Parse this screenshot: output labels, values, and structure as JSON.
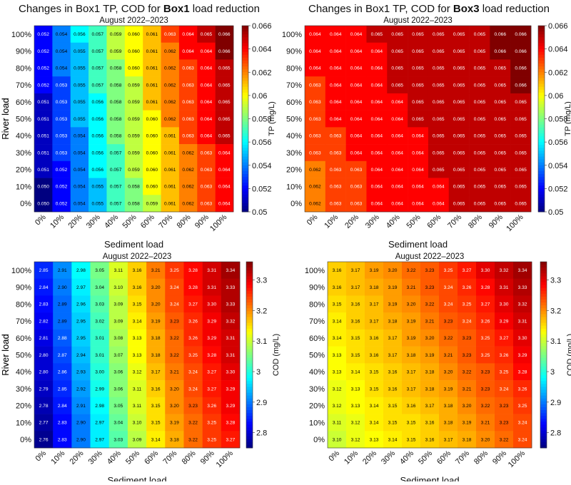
{
  "charts": [
    {
      "id": "p1",
      "title_parts": [
        "Changes in Box1 TP, COD for ",
        "Box1",
        " load reduction"
      ],
      "subtitle": "August 2022–2023",
      "xlabel": "Sediment load",
      "ylabel": "River load",
      "cbar_label": "TP (mg/L)",
      "vmin": 0.05,
      "vmax": 0.066,
      "cbar_ticks": [
        "0.066",
        "0.064",
        "0.062",
        "0.06",
        "0.058",
        "0.056",
        "0.054",
        "0.052",
        "0.05"
      ],
      "x_ticks": [
        "0%",
        "10%",
        "20%",
        "30%",
        "40%",
        "50%",
        "60%",
        "70%",
        "80%",
        "90%",
        "100%"
      ],
      "y_ticks": [
        "100%",
        "90%",
        "80%",
        "70%",
        "60%",
        "50%",
        "40%",
        "30%",
        "20%",
        "10%",
        "0%"
      ],
      "rows": [
        [
          "0.052",
          "0.054",
          "0.056",
          "0.057",
          "0.059",
          "0.060",
          "0.061",
          "0.063",
          "0.064",
          "0.065",
          "0.066"
        ],
        [
          "0.052",
          "0.054",
          "0.055",
          "0.057",
          "0.059",
          "0.060",
          "0.061",
          "0.062",
          "0.064",
          "0.064",
          "0.066"
        ],
        [
          "0.052",
          "0.054",
          "0.055",
          "0.057",
          "0.058",
          "0.060",
          "0.061",
          "0.062",
          "0.063",
          "0.064",
          "0.065"
        ],
        [
          "0.052",
          "0.053",
          "0.055",
          "0.057",
          "0.058",
          "0.059",
          "0.061",
          "0.062",
          "0.063",
          "0.064",
          "0.065"
        ],
        [
          "0.051",
          "0.053",
          "0.055",
          "0.056",
          "0.058",
          "0.059",
          "0.061",
          "0.062",
          "0.063",
          "0.064",
          "0.065"
        ],
        [
          "0.051",
          "0.053",
          "0.055",
          "0.056",
          "0.058",
          "0.059",
          "0.060",
          "0.062",
          "0.063",
          "0.064",
          "0.065"
        ],
        [
          "0.051",
          "0.053",
          "0.054",
          "0.056",
          "0.058",
          "0.059",
          "0.060",
          "0.061",
          "0.063",
          "0.064",
          "0.065"
        ],
        [
          "0.051",
          "0.053",
          "0.054",
          "0.056",
          "0.057",
          "0.059",
          "0.060",
          "0.061",
          "0.062",
          "0.063",
          "0.064"
        ],
        [
          "0.051",
          "0.052",
          "0.054",
          "0.056",
          "0.057",
          "0.059",
          "0.060",
          "0.061",
          "0.062",
          "0.063",
          "0.064"
        ],
        [
          "0.050",
          "0.052",
          "0.054",
          "0.055",
          "0.057",
          "0.058",
          "0.060",
          "0.061",
          "0.062",
          "0.063",
          "0.064"
        ],
        [
          "0.050",
          "0.052",
          "0.054",
          "0.055",
          "0.057",
          "0.058",
          "0.059",
          "0.061",
          "0.062",
          "0.063",
          "0.064"
        ]
      ]
    },
    {
      "id": "p2",
      "title_parts": [
        "Changes in Box1 TP, COD for ",
        "Box3",
        " load reduction"
      ],
      "subtitle": "August 2022–2023",
      "xlabel": "Sediment load",
      "ylabel": "River load",
      "cbar_label": "TP (mg/L)",
      "vmin": 0.05,
      "vmax": 0.066,
      "cbar_ticks": [
        "0.066",
        "0.064",
        "0.062",
        "0.06",
        "0.058",
        "0.056",
        "0.054",
        "0.052",
        "0.05"
      ],
      "x_ticks": [
        "0%",
        "10%",
        "20%",
        "30%",
        "40%",
        "50%",
        "60%",
        "70%",
        "80%",
        "90%",
        "100%"
      ],
      "y_ticks": [
        "100%",
        "90%",
        "80%",
        "70%",
        "60%",
        "50%",
        "40%",
        "30%",
        "20%",
        "10%",
        "0%"
      ],
      "rows": [
        [
          "0.064",
          "0.064",
          "0.064",
          "0.065",
          "0.065",
          "0.065",
          "0.065",
          "0.065",
          "0.065",
          "0.066",
          "0.066"
        ],
        [
          "0.064",
          "0.064",
          "0.064",
          "0.064",
          "0.065",
          "0.065",
          "0.065",
          "0.065",
          "0.065",
          "0.066",
          "0.066"
        ],
        [
          "0.064",
          "0.064",
          "0.064",
          "0.064",
          "0.065",
          "0.065",
          "0.065",
          "0.065",
          "0.065",
          "0.065",
          "0.066"
        ],
        [
          "0.063",
          "0.064",
          "0.064",
          "0.064",
          "0.065",
          "0.065",
          "0.065",
          "0.065",
          "0.065",
          "0.065",
          "0.066"
        ],
        [
          "0.063",
          "0.064",
          "0.064",
          "0.064",
          "0.064",
          "0.065",
          "0.065",
          "0.065",
          "0.065",
          "0.065",
          "0.065"
        ],
        [
          "0.063",
          "0.064",
          "0.064",
          "0.064",
          "0.064",
          "0.065",
          "0.065",
          "0.065",
          "0.065",
          "0.065",
          "0.065"
        ],
        [
          "0.063",
          "0.063",
          "0.064",
          "0.064",
          "0.064",
          "0.064",
          "0.065",
          "0.065",
          "0.065",
          "0.065",
          "0.065"
        ],
        [
          "0.063",
          "0.063",
          "0.064",
          "0.064",
          "0.064",
          "0.064",
          "0.065",
          "0.065",
          "0.065",
          "0.065",
          "0.065"
        ],
        [
          "0.062",
          "0.063",
          "0.063",
          "0.064",
          "0.064",
          "0.064",
          "0.065",
          "0.065",
          "0.065",
          "0.065",
          "0.065"
        ],
        [
          "0.062",
          "0.063",
          "0.063",
          "0.064",
          "0.064",
          "0.064",
          "0.064",
          "0.065",
          "0.065",
          "0.065",
          "0.065"
        ],
        [
          "0.062",
          "0.063",
          "0.063",
          "0.064",
          "0.064",
          "0.064",
          "0.064",
          "0.065",
          "0.065",
          "0.065",
          "0.065"
        ]
      ]
    },
    {
      "id": "p3",
      "title_parts": [],
      "subtitle": "August 2022–2023",
      "xlabel": "Sediment load",
      "ylabel": "River load",
      "cbar_label": "COD (mg/L)",
      "vmin": 2.75,
      "vmax": 3.36,
      "cbar_ticks": [
        "3.3",
        "3.2",
        "3.1",
        "3",
        "2.9",
        "2.8"
      ],
      "x_ticks": [
        "0%",
        "10%",
        "20%",
        "30%",
        "40%",
        "50%",
        "60%",
        "70%",
        "80%",
        "90%",
        "100%"
      ],
      "y_ticks": [
        "100%",
        "90%",
        "80%",
        "70%",
        "60%",
        "50%",
        "40%",
        "30%",
        "20%",
        "10%",
        "0%"
      ],
      "rows": [
        [
          "2.85",
          "2.91",
          "2.98",
          "3.05",
          "3.11",
          "3.16",
          "3.21",
          "3.25",
          "3.28",
          "3.31",
          "3.34"
        ],
        [
          "2.84",
          "2.90",
          "2.97",
          "3.04",
          "3.10",
          "3.16",
          "3.20",
          "3.24",
          "3.28",
          "3.31",
          "3.33"
        ],
        [
          "2.83",
          "2.89",
          "2.96",
          "3.03",
          "3.09",
          "3.15",
          "3.20",
          "3.24",
          "3.27",
          "3.30",
          "3.33"
        ],
        [
          "2.82",
          "2.89",
          "2.95",
          "3.02",
          "3.09",
          "3.14",
          "3.19",
          "3.23",
          "3.26",
          "3.29",
          "3.32"
        ],
        [
          "2.81",
          "2.88",
          "2.95",
          "3.01",
          "3.08",
          "3.13",
          "3.18",
          "3.22",
          "3.26",
          "3.29",
          "3.31"
        ],
        [
          "2.80",
          "2.87",
          "2.94",
          "3.01",
          "3.07",
          "3.13",
          "3.18",
          "3.22",
          "3.25",
          "3.28",
          "3.31"
        ],
        [
          "2.80",
          "2.86",
          "2.93",
          "3.00",
          "3.06",
          "3.12",
          "3.17",
          "3.21",
          "3.24",
          "3.27",
          "3.30"
        ],
        [
          "2.79",
          "2.85",
          "2.92",
          "2.99",
          "3.06",
          "3.11",
          "3.16",
          "3.20",
          "3.24",
          "3.27",
          "3.29"
        ],
        [
          "2.78",
          "2.84",
          "2.91",
          "2.98",
          "3.05",
          "3.11",
          "3.15",
          "3.20",
          "3.23",
          "3.26",
          "3.29"
        ],
        [
          "2.77",
          "2.83",
          "2.90",
          "2.97",
          "3.04",
          "3.10",
          "3.15",
          "3.19",
          "3.22",
          "3.25",
          "3.28"
        ],
        [
          "2.76",
          "2.83",
          "2.90",
          "2.97",
          "3.03",
          "3.09",
          "3.14",
          "3.18",
          "3.22",
          "3.25",
          "3.27"
        ]
      ]
    },
    {
      "id": "p4",
      "title_parts": [],
      "subtitle": "August 2022–2023",
      "xlabel": "Sediment load",
      "ylabel": "River load",
      "cbar_label": "COD (mg/L)",
      "vmin": 2.75,
      "vmax": 3.36,
      "cbar_ticks": [
        "3.3",
        "3.2",
        "3.1",
        "3",
        "2.9",
        "2.8"
      ],
      "x_ticks": [
        "0%",
        "10%",
        "20%",
        "30%",
        "40%",
        "50%",
        "60%",
        "70%",
        "80%",
        "90%",
        "100%"
      ],
      "y_ticks": [
        "100%",
        "90%",
        "80%",
        "70%",
        "60%",
        "50%",
        "40%",
        "30%",
        "20%",
        "10%",
        "0%"
      ],
      "rows": [
        [
          "3.16",
          "3.17",
          "3.19",
          "3.20",
          "3.22",
          "3.23",
          "3.25",
          "3.27",
          "3.30",
          "3.32",
          "3.34"
        ],
        [
          "3.16",
          "3.17",
          "3.18",
          "3.19",
          "3.21",
          "3.23",
          "3.24",
          "3.26",
          "3.28",
          "3.31",
          "3.33"
        ],
        [
          "3.15",
          "3.16",
          "3.17",
          "3.19",
          "3.20",
          "3.22",
          "3.24",
          "3.25",
          "3.27",
          "3.30",
          "3.32"
        ],
        [
          "3.14",
          "3.16",
          "3.17",
          "3.18",
          "3.19",
          "3.21",
          "3.23",
          "3.24",
          "3.26",
          "3.29",
          "3.31"
        ],
        [
          "3.14",
          "3.15",
          "3.16",
          "3.17",
          "3.19",
          "3.20",
          "3.22",
          "3.23",
          "3.25",
          "3.27",
          "3.30"
        ],
        [
          "3.13",
          "3.15",
          "3.16",
          "3.17",
          "3.18",
          "3.19",
          "3.21",
          "3.23",
          "3.25",
          "3.26",
          "3.29"
        ],
        [
          "3.13",
          "3.14",
          "3.15",
          "3.16",
          "3.17",
          "3.18",
          "3.20",
          "3.22",
          "3.23",
          "3.25",
          "3.28"
        ],
        [
          "3.12",
          "3.13",
          "3.15",
          "3.16",
          "3.17",
          "3.18",
          "3.19",
          "3.21",
          "3.23",
          "3.24",
          "3.26"
        ],
        [
          "3.12",
          "3.13",
          "3.14",
          "3.15",
          "3.16",
          "3.17",
          "3.18",
          "3.20",
          "3.22",
          "3.23",
          "3.25"
        ],
        [
          "3.11",
          "3.12",
          "3.14",
          "3.15",
          "3.15",
          "3.16",
          "3.18",
          "3.19",
          "3.21",
          "3.23",
          "3.24"
        ],
        [
          "3.10",
          "3.12",
          "3.13",
          "3.14",
          "3.15",
          "3.16",
          "3.17",
          "3.18",
          "3.20",
          "3.22",
          "3.24"
        ]
      ]
    }
  ],
  "chart_data": [
    {
      "type": "heatmap",
      "panel": "p1",
      "title": "Changes in Box1 TP, COD for Box1 load reduction",
      "subtitle": "August 2022–2023",
      "xlabel": "Sediment load",
      "ylabel": "River load",
      "colorbar": "TP (mg/L)",
      "range": [
        0.05,
        0.066
      ]
    },
    {
      "type": "heatmap",
      "panel": "p2",
      "title": "Changes in Box1 TP, COD for Box3 load reduction",
      "subtitle": "August 2022–2023",
      "xlabel": "Sediment load",
      "ylabel": "River load",
      "colorbar": "TP (mg/L)",
      "range": [
        0.05,
        0.066
      ]
    },
    {
      "type": "heatmap",
      "panel": "p3",
      "title": "",
      "subtitle": "August 2022–2023",
      "xlabel": "Sediment load",
      "ylabel": "River load",
      "colorbar": "COD (mg/L)",
      "range": [
        2.75,
        3.36
      ]
    },
    {
      "type": "heatmap",
      "panel": "p4",
      "title": "",
      "subtitle": "August 2022–2023",
      "xlabel": "Sediment load",
      "ylabel": "River load",
      "colorbar": "COD (mg/L)",
      "range": [
        2.75,
        3.36
      ]
    }
  ]
}
